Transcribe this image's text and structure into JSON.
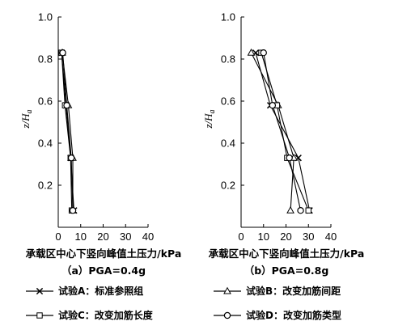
{
  "chart_data": [
    {
      "type": "line",
      "caption": "（a）PGA=0.4g",
      "xlabel": "承载区中心下竖向峰值土压力/kPa",
      "ylabel": "z/H",
      "ylabel_sub": "a",
      "xlim": [
        0,
        40
      ],
      "ylim": [
        0,
        1.0
      ],
      "xticks": [
        "0",
        "10",
        "20",
        "30",
        "40"
      ],
      "yticks": [
        "0.2",
        "0.4",
        "0.6",
        "0.8",
        "1.0"
      ],
      "series": [
        {
          "name": "试验A：标准参照组",
          "marker": "x",
          "x": [
            1.5,
            3.5,
            5.5,
            7.0
          ],
          "y": [
            0.83,
            0.58,
            0.33,
            0.08
          ]
        },
        {
          "name": "试验B：改变加筋间距",
          "marker": "triangle",
          "x": [
            1.8,
            4.5,
            6.5,
            6.5
          ],
          "y": [
            0.83,
            0.58,
            0.33,
            0.08
          ]
        },
        {
          "name": "试验C：改变加筋长度",
          "marker": "square",
          "x": [
            1.5,
            3.0,
            5.5,
            6.0
          ],
          "y": [
            0.83,
            0.58,
            0.33,
            0.08
          ]
        },
        {
          "name": "试验D：改变加筋类型",
          "marker": "circle",
          "x": [
            2.0,
            3.8,
            5.8,
            6.5
          ],
          "y": [
            0.83,
            0.58,
            0.33,
            0.08
          ]
        }
      ]
    },
    {
      "type": "line",
      "caption": "（b）PGA=0.8g",
      "xlabel": "承载区中心下竖向峰值土压力/kPa",
      "ylabel": "z/H",
      "ylabel_sub": "a",
      "xlim": [
        0,
        40
      ],
      "ylim": [
        0,
        1.0
      ],
      "xticks": [
        "0",
        "10",
        "20",
        "30",
        "40"
      ],
      "yticks": [
        "0.2",
        "0.4",
        "0.6",
        "0.8",
        "1.0"
      ],
      "series": [
        {
          "name": "试验A：标准参照组",
          "marker": "x",
          "x": [
            6.5,
            13.0,
            25.5,
            30.5
          ],
          "y": [
            0.83,
            0.58,
            0.33,
            0.08
          ]
        },
        {
          "name": "试验B：改变加筋间距",
          "marker": "triangle",
          "x": [
            4.5,
            16.5,
            23.5,
            22.0
          ],
          "y": [
            0.83,
            0.58,
            0.33,
            0.08
          ]
        },
        {
          "name": "试验C：改变加筋长度",
          "marker": "square",
          "x": [
            9.0,
            16.0,
            20.5,
            30.0
          ],
          "y": [
            0.83,
            0.58,
            0.33,
            0.08
          ]
        },
        {
          "name": "试验D：改变加筋类型",
          "marker": "circle",
          "x": [
            10.0,
            14.0,
            21.5,
            26.5
          ],
          "y": [
            0.83,
            0.58,
            0.33,
            0.08
          ]
        }
      ]
    }
  ],
  "legend": [
    {
      "series": "试验A",
      "label": "试验A：标准参照组",
      "marker": "x"
    },
    {
      "series": "试验B",
      "label": "试验B：改变加筋间距",
      "marker": "triangle"
    },
    {
      "series": "试验C",
      "label": "试验C：改变加筋长度",
      "marker": "square"
    },
    {
      "series": "试验D",
      "label": "试验D：改变加筋类型",
      "marker": "circle"
    }
  ]
}
